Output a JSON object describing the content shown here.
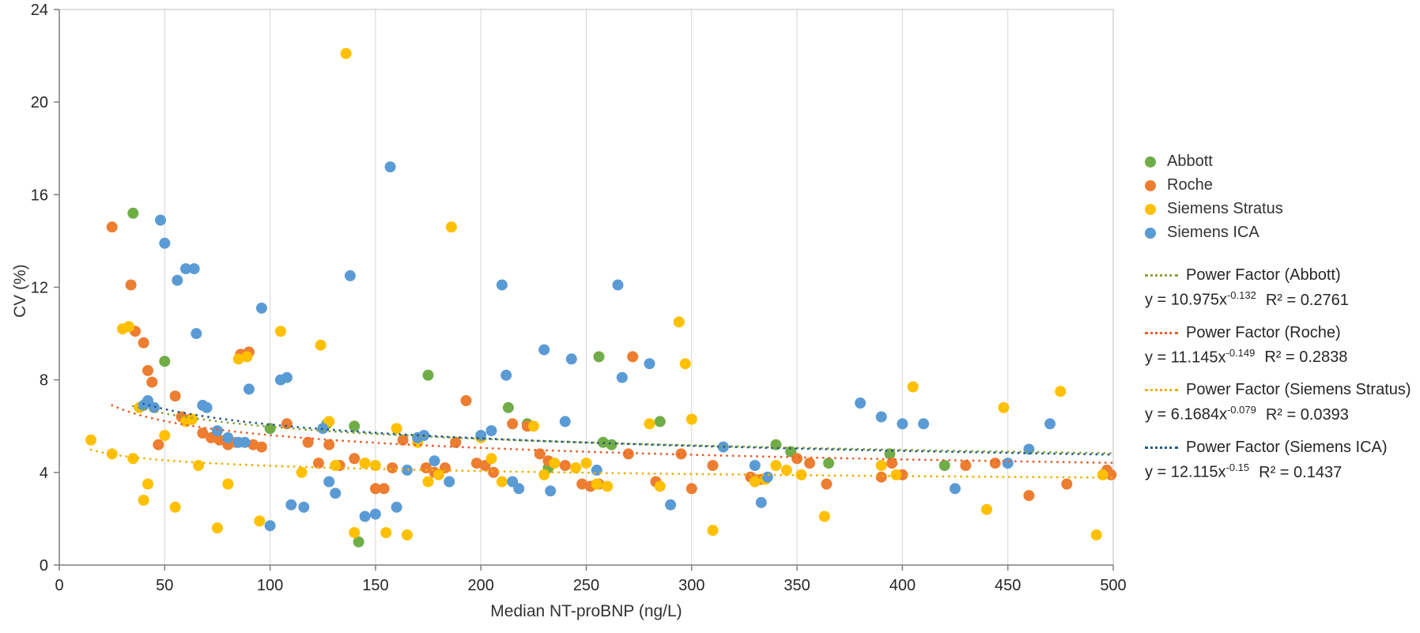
{
  "chart_data": {
    "type": "scatter",
    "title": "",
    "xlabel": "Median NT-proBNP (ng/L)",
    "ylabel": "CV (%)",
    "xlim": [
      0,
      500
    ],
    "ylim": [
      0,
      24
    ],
    "xticks": [
      0,
      50,
      100,
      150,
      200,
      250,
      300,
      350,
      400,
      450,
      500
    ],
    "yticks": [
      0,
      4,
      8,
      12,
      16,
      20,
      24
    ],
    "grid": "vertical",
    "legend_position": "right",
    "series": [
      {
        "name": "Abbott",
        "color": "#70AD47",
        "points": [
          [
            35,
            15.2
          ],
          [
            50,
            8.8
          ],
          [
            100,
            5.9
          ],
          [
            127,
            6.1
          ],
          [
            140,
            6.0
          ],
          [
            142,
            1.0
          ],
          [
            175,
            8.2
          ],
          [
            188,
            5.3
          ],
          [
            213,
            6.8
          ],
          [
            222,
            6.1
          ],
          [
            232,
            4.2
          ],
          [
            256,
            9.0
          ],
          [
            258,
            5.3
          ],
          [
            262,
            5.2
          ],
          [
            285,
            6.2
          ],
          [
            340,
            5.2
          ],
          [
            347,
            4.9
          ],
          [
            365,
            4.4
          ],
          [
            394,
            4.8
          ],
          [
            420,
            4.3
          ]
        ]
      },
      {
        "name": "Roche",
        "color": "#ED7D31",
        "points": [
          [
            25,
            14.6
          ],
          [
            34,
            12.1
          ],
          [
            36,
            10.1
          ],
          [
            40,
            9.6
          ],
          [
            42,
            8.4
          ],
          [
            44,
            7.9
          ],
          [
            47,
            5.2
          ],
          [
            55,
            7.3
          ],
          [
            58,
            6.4
          ],
          [
            62,
            6.3
          ],
          [
            68,
            5.7
          ],
          [
            72,
            5.5
          ],
          [
            76,
            5.4
          ],
          [
            80,
            5.2
          ],
          [
            84,
            5.3
          ],
          [
            86,
            9.1
          ],
          [
            90,
            9.2
          ],
          [
            92,
            5.2
          ],
          [
            96,
            5.1
          ],
          [
            108,
            6.1
          ],
          [
            118,
            5.3
          ],
          [
            123,
            4.4
          ],
          [
            128,
            5.2
          ],
          [
            133,
            4.3
          ],
          [
            140,
            4.6
          ],
          [
            145,
            4.4
          ],
          [
            150,
            3.3
          ],
          [
            154,
            3.3
          ],
          [
            158,
            4.2
          ],
          [
            163,
            5.4
          ],
          [
            170,
            5.5
          ],
          [
            174,
            4.2
          ],
          [
            178,
            4.0
          ],
          [
            183,
            4.2
          ],
          [
            188,
            5.3
          ],
          [
            193,
            7.1
          ],
          [
            198,
            4.4
          ],
          [
            202,
            4.3
          ],
          [
            206,
            4.0
          ],
          [
            215,
            6.1
          ],
          [
            222,
            6.0
          ],
          [
            228,
            4.8
          ],
          [
            232,
            4.5
          ],
          [
            240,
            4.3
          ],
          [
            248,
            3.5
          ],
          [
            252,
            3.4
          ],
          [
            256,
            3.5
          ],
          [
            270,
            4.8
          ],
          [
            272,
            9.0
          ],
          [
            283,
            3.6
          ],
          [
            295,
            4.8
          ],
          [
            300,
            3.3
          ],
          [
            310,
            4.3
          ],
          [
            328,
            3.8
          ],
          [
            333,
            3.7
          ],
          [
            350,
            4.6
          ],
          [
            356,
            4.4
          ],
          [
            364,
            3.5
          ],
          [
            390,
            3.8
          ],
          [
            395,
            4.4
          ],
          [
            400,
            3.9
          ],
          [
            430,
            4.3
          ],
          [
            444,
            4.4
          ],
          [
            460,
            3.0
          ],
          [
            478,
            3.5
          ],
          [
            497,
            4.1
          ],
          [
            499,
            3.9
          ]
        ]
      },
      {
        "name": "Siemens Stratus",
        "color": "#FFC000",
        "points": [
          [
            15,
            5.4
          ],
          [
            25,
            4.8
          ],
          [
            30,
            10.2
          ],
          [
            33,
            10.3
          ],
          [
            35,
            4.6
          ],
          [
            38,
            6.8
          ],
          [
            40,
            2.8
          ],
          [
            42,
            3.5
          ],
          [
            50,
            5.6
          ],
          [
            55,
            2.5
          ],
          [
            60,
            6.2
          ],
          [
            63,
            6.3
          ],
          [
            66,
            4.3
          ],
          [
            75,
            1.6
          ],
          [
            80,
            3.5
          ],
          [
            85,
            8.9
          ],
          [
            89,
            9.0
          ],
          [
            95,
            1.9
          ],
          [
            105,
            10.1
          ],
          [
            115,
            4.0
          ],
          [
            124,
            9.5
          ],
          [
            128,
            6.2
          ],
          [
            131,
            4.3
          ],
          [
            136,
            22.1
          ],
          [
            140,
            1.4
          ],
          [
            145,
            4.4
          ],
          [
            150,
            4.3
          ],
          [
            155,
            1.4
          ],
          [
            160,
            5.9
          ],
          [
            165,
            1.3
          ],
          [
            170,
            5.3
          ],
          [
            175,
            3.6
          ],
          [
            180,
            3.9
          ],
          [
            186,
            14.6
          ],
          [
            200,
            5.5
          ],
          [
            205,
            4.6
          ],
          [
            210,
            3.6
          ],
          [
            225,
            6.0
          ],
          [
            230,
            3.9
          ],
          [
            235,
            4.4
          ],
          [
            245,
            4.2
          ],
          [
            250,
            4.4
          ],
          [
            255,
            3.5
          ],
          [
            260,
            3.4
          ],
          [
            280,
            6.1
          ],
          [
            285,
            3.4
          ],
          [
            294,
            10.5
          ],
          [
            297,
            8.7
          ],
          [
            300,
            6.3
          ],
          [
            310,
            1.5
          ],
          [
            330,
            3.6
          ],
          [
            335,
            3.7
          ],
          [
            340,
            4.3
          ],
          [
            345,
            4.1
          ],
          [
            352,
            3.9
          ],
          [
            363,
            2.1
          ],
          [
            390,
            4.3
          ],
          [
            397,
            3.9
          ],
          [
            405,
            7.7
          ],
          [
            440,
            2.4
          ],
          [
            448,
            6.8
          ],
          [
            475,
            7.5
          ],
          [
            492,
            1.3
          ],
          [
            495,
            3.9
          ]
        ]
      },
      {
        "name": "Siemens ICA",
        "color": "#5B9BD5",
        "points": [
          [
            40,
            6.9
          ],
          [
            42,
            7.1
          ],
          [
            45,
            6.8
          ],
          [
            48,
            14.9
          ],
          [
            50,
            13.9
          ],
          [
            56,
            12.3
          ],
          [
            60,
            12.8
          ],
          [
            64,
            12.8
          ],
          [
            65,
            10.0
          ],
          [
            68,
            6.9
          ],
          [
            70,
            6.8
          ],
          [
            75,
            5.8
          ],
          [
            80,
            5.5
          ],
          [
            85,
            5.3
          ],
          [
            88,
            5.3
          ],
          [
            90,
            7.6
          ],
          [
            96,
            11.1
          ],
          [
            100,
            1.7
          ],
          [
            105,
            8.0
          ],
          [
            108,
            8.1
          ],
          [
            110,
            2.6
          ],
          [
            116,
            2.5
          ],
          [
            125,
            5.9
          ],
          [
            128,
            3.6
          ],
          [
            131,
            3.1
          ],
          [
            138,
            12.5
          ],
          [
            145,
            2.1
          ],
          [
            150,
            2.2
          ],
          [
            157,
            17.2
          ],
          [
            160,
            2.5
          ],
          [
            165,
            4.1
          ],
          [
            170,
            5.5
          ],
          [
            173,
            5.6
          ],
          [
            178,
            4.5
          ],
          [
            185,
            3.6
          ],
          [
            200,
            5.6
          ],
          [
            205,
            5.8
          ],
          [
            210,
            12.1
          ],
          [
            212,
            8.2
          ],
          [
            215,
            3.6
          ],
          [
            218,
            3.3
          ],
          [
            230,
            9.3
          ],
          [
            233,
            3.2
          ],
          [
            240,
            6.2
          ],
          [
            243,
            8.9
          ],
          [
            255,
            4.1
          ],
          [
            265,
            12.1
          ],
          [
            267,
            8.1
          ],
          [
            280,
            8.7
          ],
          [
            290,
            2.6
          ],
          [
            315,
            5.1
          ],
          [
            330,
            4.3
          ],
          [
            333,
            2.7
          ],
          [
            336,
            3.8
          ],
          [
            380,
            7.0
          ],
          [
            390,
            6.4
          ],
          [
            400,
            6.1
          ],
          [
            410,
            6.1
          ],
          [
            425,
            3.3
          ],
          [
            450,
            4.4
          ],
          [
            460,
            5.0
          ],
          [
            470,
            6.1
          ]
        ]
      }
    ],
    "trendlines": [
      {
        "series": "Abbott",
        "name": "Power Factor (Abbott)",
        "color": "#8AA23A",
        "a": 10.975,
        "b": -0.132,
        "eq_base": "y = 10.975x",
        "exp": "-0.132",
        "r2_text": "R² = 0.2761"
      },
      {
        "series": "Roche",
        "name": "Power Factor (Roche)",
        "color": "#E8602C",
        "a": 11.145,
        "b": -0.149,
        "eq_base": "y = 11.145x",
        "exp": "-0.149",
        "r2_text": "R² = 0.2838"
      },
      {
        "series": "Siemens Stratus",
        "name": "Power Factor (Siemens Stratus)",
        "color": "#F0B000",
        "a": 6.1684,
        "b": -0.079,
        "eq_base": "y = 6.1684x",
        "exp": "-0.079",
        "r2_text": "R² = 0.0393"
      },
      {
        "series": "Siemens ICA",
        "name": "Power Factor (Siemens ICA)",
        "color": "#1F5C8A",
        "a": 12.115,
        "b": -0.15,
        "eq_base": "y = 12.115x",
        "exp": "-0.15",
        "r2_text": "R² = 0.1437"
      }
    ]
  }
}
